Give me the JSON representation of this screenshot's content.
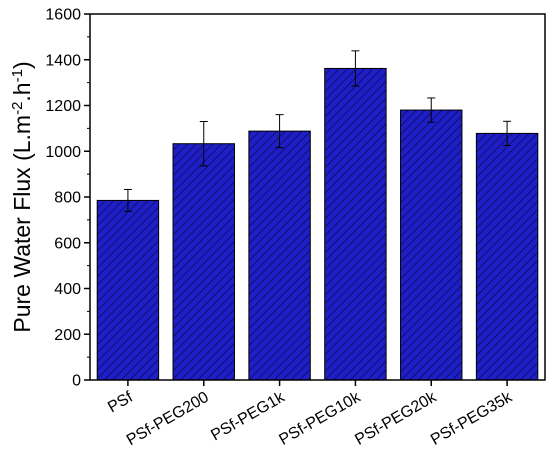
{
  "chart_data": {
    "type": "bar",
    "title": "",
    "xlabel": "",
    "ylabel": {
      "main": "Pure Water Flux (L.m",
      "sup1": "-2",
      "mid": ".h",
      "sup2": "-1",
      "end": ")"
    },
    "categories": [
      "PSf",
      "PSf-PEG200",
      "PSf-PEG1k",
      "PSf-PEG10k",
      "PSf-PEG20k",
      "PSf-PEG35k"
    ],
    "values": [
      785,
      1033,
      1088,
      1362,
      1180,
      1078
    ],
    "errors": [
      48,
      97,
      72,
      77,
      53,
      53
    ],
    "ylim": [
      0,
      1600
    ],
    "yticks": [
      0,
      200,
      400,
      600,
      800,
      1000,
      1200,
      1400,
      1600
    ],
    "grid": false,
    "bar_color": "#1f1fc8",
    "hatch_color": "#0a0a55"
  }
}
